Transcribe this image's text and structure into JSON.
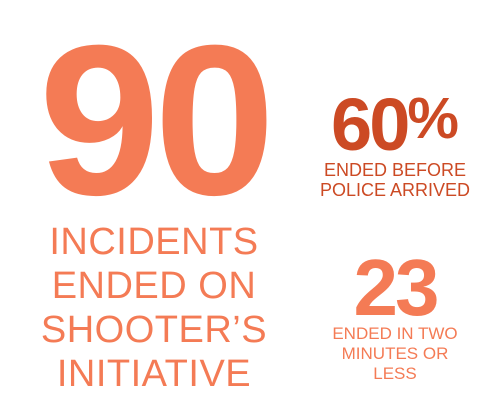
{
  "main": {
    "number": "90",
    "caption_lines": [
      "INCIDENTS",
      "ENDED ON",
      "SHOOTER’S",
      "INITIATIVE"
    ]
  },
  "stat_police": {
    "number": "60",
    "suffix": "%",
    "caption_lines": [
      "ENDED BEFORE",
      "POLICE ARRIVED"
    ]
  },
  "stat_quick": {
    "number": "23",
    "caption_lines": [
      "ENDED IN TWO",
      "MINUTES OR",
      "LESS"
    ]
  },
  "colors": {
    "light_orange": "#f47b55",
    "dark_orange": "#cc4a24"
  }
}
